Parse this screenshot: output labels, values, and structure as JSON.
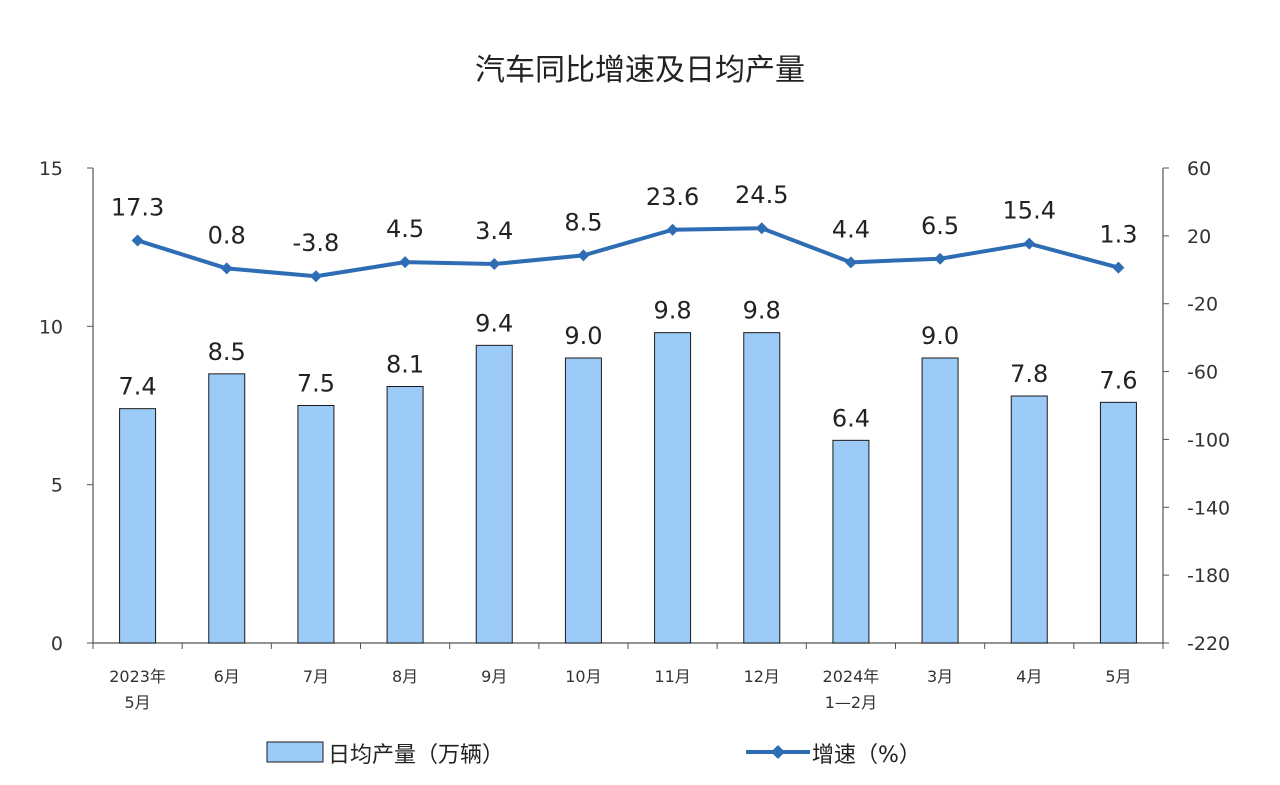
{
  "chart_data": {
    "type": "bar+line",
    "title": "汽车同比增速及日均产量",
    "categories": [
      [
        "2023年",
        "5月"
      ],
      [
        "6月"
      ],
      [
        "7月"
      ],
      [
        "8月"
      ],
      [
        "9月"
      ],
      [
        "10月"
      ],
      [
        "11月"
      ],
      [
        "12月"
      ],
      [
        "2024年",
        "1—2月"
      ],
      [
        "3月"
      ],
      [
        "4月"
      ],
      [
        "5月"
      ]
    ],
    "series": [
      {
        "name": "日均产量（万辆）",
        "type": "bar",
        "axis": "left",
        "color": "#9DCBF7",
        "stroke": "#1a1a1a",
        "values": [
          7.4,
          8.5,
          7.5,
          8.1,
          9.4,
          9.0,
          9.8,
          9.8,
          6.4,
          9.0,
          7.8,
          7.6
        ],
        "labels": [
          "7.4",
          "8.5",
          "7.5",
          "8.1",
          "9.4",
          "9.0",
          "9.8",
          "9.8",
          "6.4",
          "9.0",
          "7.8",
          "7.6"
        ]
      },
      {
        "name": "增速（%）",
        "type": "line",
        "axis": "right",
        "color": "#2E6DB4",
        "values": [
          17.3,
          0.8,
          -3.8,
          4.5,
          3.4,
          8.5,
          23.6,
          24.5,
          4.4,
          6.5,
          15.4,
          1.3
        ],
        "labels": [
          "17.3",
          "0.8",
          "-3.8",
          "4.5",
          "3.4",
          "8.5",
          "23.6",
          "24.5",
          "4.4",
          "6.5",
          "15.4",
          "1.3"
        ]
      }
    ],
    "y_left": {
      "min": 0,
      "max": 15,
      "ticks": [
        "0",
        "5",
        "10",
        "15"
      ]
    },
    "y_right": {
      "min": -220,
      "max": 60,
      "ticks": [
        "60",
        "20",
        "-20",
        "-60",
        "-100",
        "-140",
        "-180",
        "-220"
      ]
    },
    "legend": {
      "position": "bottom",
      "items": [
        "日均产量（万辆）",
        "增速（%）"
      ]
    },
    "grid": false
  }
}
